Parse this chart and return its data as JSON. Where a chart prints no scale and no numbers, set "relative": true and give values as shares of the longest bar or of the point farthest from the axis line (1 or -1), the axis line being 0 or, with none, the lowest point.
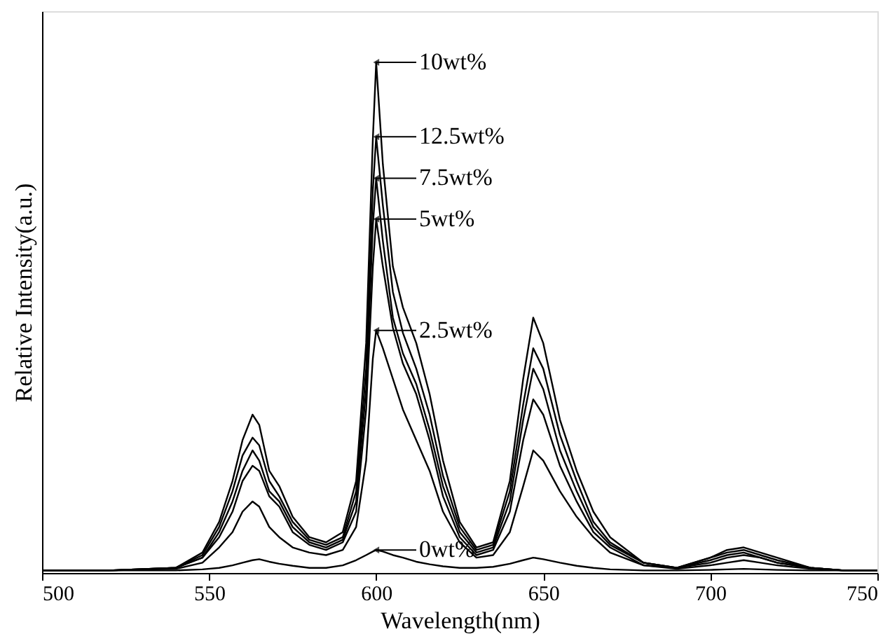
{
  "chart_data": {
    "type": "line",
    "relative": true,
    "xlabel": "Wavelength(nm)",
    "ylabel": "Relative Intensity(a.u.)",
    "xlim": [
      500,
      750
    ],
    "xticks": [
      500,
      550,
      600,
      650,
      700,
      750
    ],
    "grid": false,
    "legend": "top",
    "marker": "none",
    "line_style": "solid",
    "x": [
      500,
      520,
      540,
      548,
      553,
      557,
      560,
      563,
      565,
      568,
      571,
      575,
      580,
      585,
      590,
      594,
      597,
      599,
      600,
      602,
      605,
      608,
      612,
      616,
      620,
      625,
      630,
      635,
      640,
      644,
      647,
      650,
      655,
      660,
      665,
      670,
      680,
      690,
      700,
      705,
      710,
      715,
      720,
      730,
      740,
      750
    ],
    "series": [
      {
        "name": "10wt%",
        "color": "#000000",
        "values": [
          0.005,
          0.005,
          0.01,
          0.04,
          0.1,
          0.18,
          0.26,
          0.31,
          0.29,
          0.2,
          0.17,
          0.11,
          0.07,
          0.06,
          0.08,
          0.18,
          0.45,
          0.85,
          1.0,
          0.8,
          0.6,
          0.52,
          0.45,
          0.35,
          0.22,
          0.1,
          0.05,
          0.06,
          0.18,
          0.38,
          0.5,
          0.45,
          0.3,
          0.2,
          0.12,
          0.07,
          0.02,
          0.01,
          0.03,
          0.045,
          0.05,
          0.04,
          0.03,
          0.01,
          0.005,
          0.005
        ]
      },
      {
        "name": "12.5wt%",
        "color": "#000000",
        "values": [
          0.005,
          0.005,
          0.01,
          0.035,
          0.09,
          0.16,
          0.23,
          0.265,
          0.25,
          0.18,
          0.15,
          0.1,
          0.065,
          0.055,
          0.07,
          0.16,
          0.4,
          0.75,
          0.854,
          0.72,
          0.55,
          0.47,
          0.4,
          0.31,
          0.19,
          0.09,
          0.045,
          0.055,
          0.16,
          0.33,
          0.44,
          0.4,
          0.27,
          0.18,
          0.1,
          0.06,
          0.02,
          0.01,
          0.03,
          0.04,
          0.045,
          0.035,
          0.025,
          0.01,
          0.005,
          0.005
        ]
      },
      {
        "name": "7.5wt%",
        "color": "#000000",
        "values": [
          0.005,
          0.005,
          0.01,
          0.03,
          0.08,
          0.14,
          0.2,
          0.24,
          0.22,
          0.16,
          0.14,
          0.09,
          0.06,
          0.05,
          0.065,
          0.14,
          0.36,
          0.68,
          0.773,
          0.65,
          0.5,
          0.43,
          0.37,
          0.28,
          0.17,
          0.08,
          0.04,
          0.05,
          0.14,
          0.3,
          0.4,
          0.36,
          0.24,
          0.16,
          0.09,
          0.055,
          0.02,
          0.01,
          0.025,
          0.035,
          0.04,
          0.03,
          0.02,
          0.01,
          0.005,
          0.005
        ]
      },
      {
        "name": "5wt%",
        "color": "#000000",
        "values": [
          0.005,
          0.005,
          0.01,
          0.03,
          0.07,
          0.12,
          0.18,
          0.21,
          0.2,
          0.15,
          0.13,
          0.08,
          0.055,
          0.045,
          0.06,
          0.12,
          0.32,
          0.6,
          0.693,
          0.6,
          0.48,
          0.41,
          0.35,
          0.26,
          0.15,
          0.07,
          0.035,
          0.045,
          0.12,
          0.26,
          0.34,
          0.31,
          0.21,
          0.14,
          0.08,
          0.05,
          0.015,
          0.01,
          0.02,
          0.03,
          0.035,
          0.03,
          0.02,
          0.01,
          0.005,
          0.005
        ]
      },
      {
        "name": "2.5wt%",
        "color": "#000000",
        "values": [
          0.005,
          0.005,
          0.008,
          0.02,
          0.05,
          0.08,
          0.12,
          0.14,
          0.13,
          0.09,
          0.07,
          0.05,
          0.04,
          0.035,
          0.045,
          0.09,
          0.22,
          0.42,
          0.475,
          0.44,
          0.38,
          0.32,
          0.26,
          0.2,
          0.12,
          0.06,
          0.03,
          0.035,
          0.08,
          0.17,
          0.24,
          0.22,
          0.16,
          0.11,
          0.07,
          0.04,
          0.015,
          0.008,
          0.015,
          0.02,
          0.025,
          0.02,
          0.015,
          0.008,
          0.005,
          0.005
        ]
      },
      {
        "name": "0wt%",
        "color": "#000000",
        "values": [
          0.005,
          0.005,
          0.005,
          0.007,
          0.01,
          0.015,
          0.02,
          0.025,
          0.027,
          0.022,
          0.018,
          0.014,
          0.01,
          0.01,
          0.015,
          0.025,
          0.035,
          0.042,
          0.045,
          0.042,
          0.035,
          0.03,
          0.022,
          0.017,
          0.013,
          0.01,
          0.01,
          0.012,
          0.018,
          0.025,
          0.03,
          0.027,
          0.02,
          0.014,
          0.01,
          0.007,
          0.005,
          0.005,
          0.006,
          0.007,
          0.008,
          0.007,
          0.006,
          0.005,
          0.005,
          0.005
        ]
      }
    ]
  }
}
